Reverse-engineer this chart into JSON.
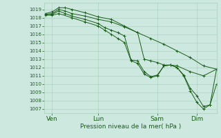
{
  "xlabel": "Pression niveau de la mer( hPa )",
  "bg_color": "#cde8de",
  "grid_color": "#a8ccbe",
  "line_color": "#1a5c1a",
  "ylim": [
    1006.5,
    1019.8
  ],
  "yticks": [
    1007,
    1008,
    1009,
    1010,
    1011,
    1012,
    1013,
    1014,
    1015,
    1016,
    1017,
    1018,
    1019
  ],
  "xtick_labels": [
    "Ven",
    "Lun",
    "Sam",
    "Dim"
  ],
  "xtick_positions": [
    0.5,
    4.0,
    8.5,
    11.5
  ],
  "xlim": [
    -0.1,
    13.0
  ],
  "lines": [
    {
      "x": [
        0,
        0.5,
        1.0,
        1.5,
        2.0,
        3.0,
        4.0,
        5.0,
        6.0,
        7.0,
        8.0,
        9.0,
        10.0,
        11.0,
        12.0,
        13.0
      ],
      "y": [
        1018.5,
        1018.7,
        1019.2,
        1019.2,
        1019.0,
        1018.6,
        1018.1,
        1017.8,
        1017.0,
        1016.2,
        1015.5,
        1014.8,
        1014.0,
        1013.2,
        1012.2,
        1011.8
      ]
    },
    {
      "x": [
        0,
        0.5,
        1.0,
        1.5,
        2.0,
        3.0,
        4.0,
        5.0,
        6.0,
        7.0,
        7.5,
        8.0,
        8.5,
        9.0,
        9.5,
        10.0,
        11.0,
        12.0,
        13.0
      ],
      "y": [
        1018.4,
        1018.5,
        1019.0,
        1018.8,
        1018.5,
        1018.2,
        1017.8,
        1017.5,
        1016.9,
        1016.2,
        1013.0,
        1012.8,
        1012.6,
        1012.3,
        1012.3,
        1012.2,
        1011.5,
        1011.0,
        1011.8
      ]
    },
    {
      "x": [
        0,
        0.5,
        1.0,
        1.5,
        2.0,
        3.0,
        4.0,
        4.5,
        5.0,
        5.5,
        6.0,
        6.5,
        7.0,
        7.5,
        8.0,
        8.5,
        9.0,
        9.5,
        10.0,
        10.5,
        11.0,
        11.5,
        12.0,
        12.5,
        13.0
      ],
      "y": [
        1018.4,
        1018.4,
        1018.8,
        1018.5,
        1018.2,
        1017.8,
        1017.3,
        1016.8,
        1016.5,
        1016.2,
        1015.8,
        1012.9,
        1012.8,
        1011.5,
        1010.9,
        1011.1,
        1012.2,
        1012.3,
        1012.0,
        1011.1,
        1009.5,
        1008.6,
        1007.3,
        1007.5,
        1010.0
      ]
    },
    {
      "x": [
        0,
        0.5,
        1.0,
        2.0,
        3.0,
        4.0,
        4.5,
        5.0,
        5.5,
        6.0,
        6.5,
        7.0,
        7.5,
        8.0,
        8.5,
        9.0,
        9.5,
        10.0,
        10.5,
        11.0,
        11.5,
        12.0,
        12.5,
        13.0
      ],
      "y": [
        1018.3,
        1018.3,
        1018.5,
        1018.0,
        1017.5,
        1017.0,
        1016.5,
        1016.0,
        1015.5,
        1015.0,
        1012.8,
        1012.5,
        1011.2,
        1010.8,
        1011.0,
        1012.2,
        1012.3,
        1012.0,
        1011.0,
        1009.2,
        1007.8,
        1007.0,
        1007.5,
        1011.8
      ]
    }
  ]
}
